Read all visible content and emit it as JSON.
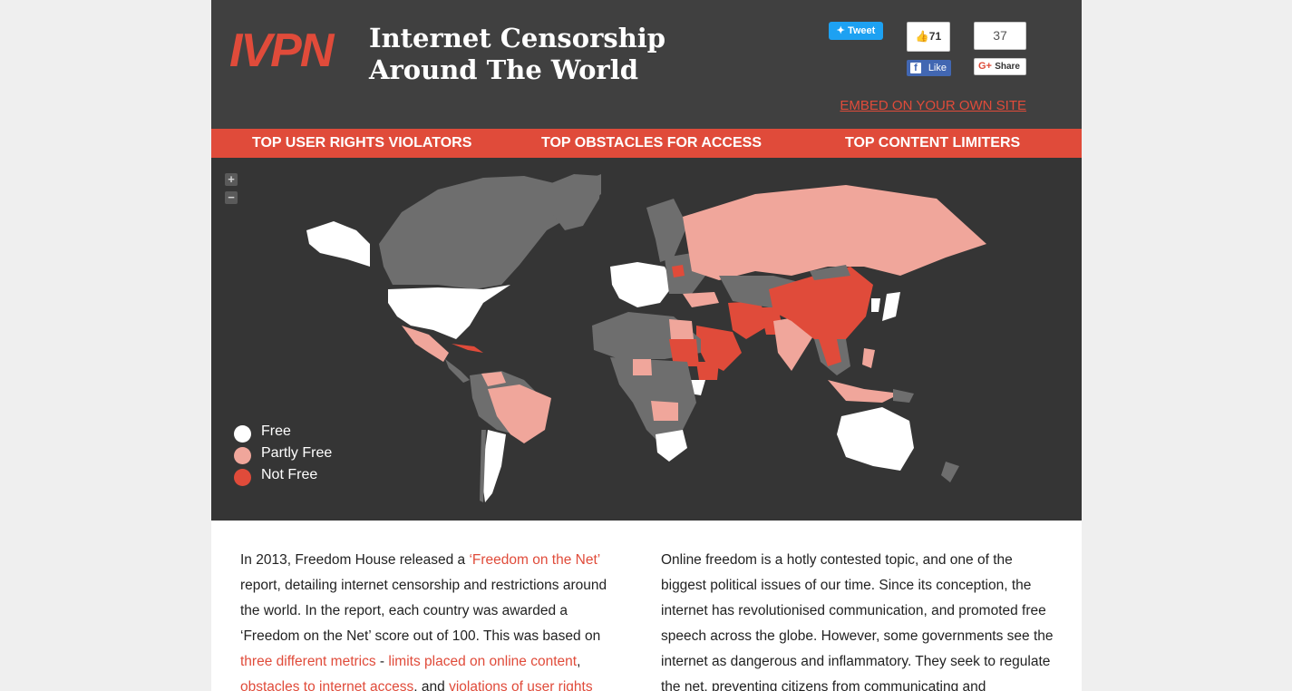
{
  "header": {
    "logo": "IVPN",
    "title": "Internet Censorship Around The World",
    "tweet_label": "Tweet",
    "fb_count": "71",
    "fb_like_label": "Like",
    "gplus_count": "37",
    "gplus_share_label": "Share",
    "embed_link": "EMBED ON YOUR OWN SITE"
  },
  "nav": {
    "items": [
      {
        "label": "TOP USER RIGHTS VIOLATORS"
      },
      {
        "label": "TOP OBSTACLES FOR ACCESS"
      },
      {
        "label": "TOP CONTENT LIMITERS"
      }
    ]
  },
  "map": {
    "zoom_in": "+",
    "zoom_out": "−",
    "legend": [
      {
        "label": "Free",
        "color": "#ffffff"
      },
      {
        "label": "Partly Free",
        "color": "#f0a69b"
      },
      {
        "label": "Not Free",
        "color": "#e04b3a"
      }
    ],
    "colors": {
      "background": "#353535",
      "no_data": "#6e6e6e"
    }
  },
  "article": {
    "left": {
      "t1": "In 2013, Freedom House released a ",
      "l1": "‘Freedom on the Net’",
      "t2": " report, detailing internet censorship and restrictions around the world. In the report, each country was awarded a ‘Freedom on the Net’ score out of 100. This was based on ",
      "l2": "three different metrics",
      "t3": " - ",
      "l3": "limits placed on online content",
      "t4": ", ",
      "l4": "obstacles to internet access",
      "t5": ", and ",
      "l5": "violations of user rights"
    },
    "right": {
      "text": "Online freedom is a hotly contested topic, and one of the biggest political issues of our time. Since its conception, the internet has revolutionised communication, and promoted free speech across the globe. However, some governments see the internet as dangerous and inflammatory. They seek to regulate the net, preventing citizens from communicating and"
    }
  },
  "colors": {
    "accent": "#e04b3a",
    "header_bg": "#404040"
  }
}
